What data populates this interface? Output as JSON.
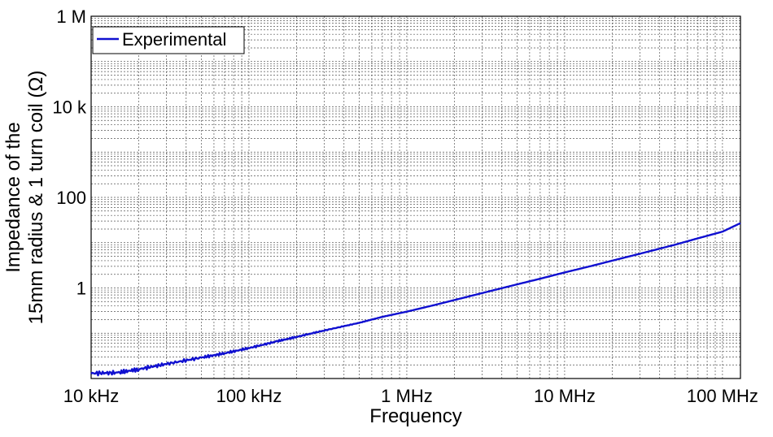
{
  "chart_data": {
    "type": "line",
    "title": "",
    "xlabel": "Frequency",
    "ylabel_lines": [
      "Impedance of the",
      "15mm radius & 1 turn coil (Ω)"
    ],
    "x_scale": "log",
    "y_scale": "log",
    "xlim": [
      10000,
      130000000
    ],
    "ylim": [
      0.01,
      1000000
    ],
    "x_ticks": [
      {
        "value": 10000,
        "label": "10 kHz"
      },
      {
        "value": 100000,
        "label": "100 kHz"
      },
      {
        "value": 1000000,
        "label": "1 MHz"
      },
      {
        "value": 10000000,
        "label": "10 MHz"
      },
      {
        "value": 100000000,
        "label": "100 MHz"
      }
    ],
    "y_ticks": [
      {
        "value": 1,
        "label": "1"
      },
      {
        "value": 100,
        "label": "100"
      },
      {
        "value": 10000,
        "label": "10 k"
      },
      {
        "value": 1000000,
        "label": "1 M"
      }
    ],
    "grid": true,
    "legend_position": "top-left",
    "series": [
      {
        "name": "Experimental",
        "color": "#1010d0",
        "x": [
          10000,
          15000,
          20000,
          30000,
          50000,
          70000,
          100000,
          150000,
          200000,
          300000,
          500000,
          700000,
          1000000,
          1500000,
          2000000,
          3000000,
          5000000,
          7000000,
          10000000,
          15000000,
          20000000,
          30000000,
          50000000,
          70000000,
          100000000,
          130000000
        ],
        "y": [
          0.013,
          0.0135,
          0.016,
          0.021,
          0.029,
          0.036,
          0.047,
          0.066,
          0.083,
          0.115,
          0.17,
          0.23,
          0.3,
          0.42,
          0.54,
          0.77,
          1.2,
          1.6,
          2.2,
          3.1,
          4.0,
          5.7,
          9.0,
          12.5,
          17.5,
          27
        ]
      }
    ]
  }
}
